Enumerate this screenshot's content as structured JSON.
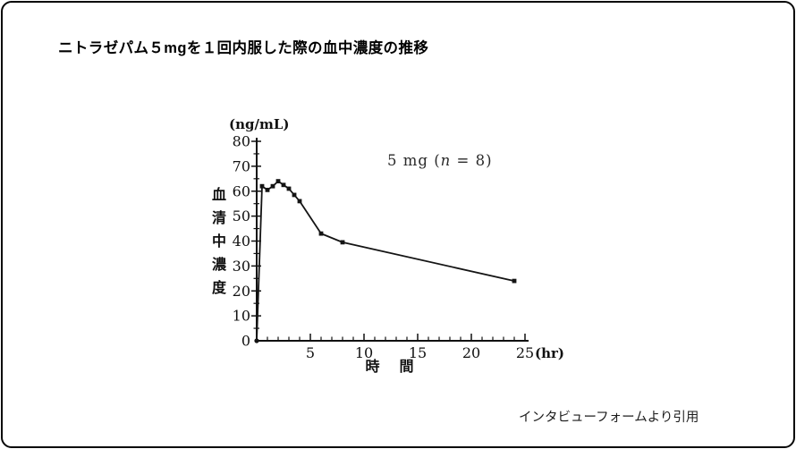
{
  "page": {
    "title": "ニトラゼパム５mgを１回内服した際の血中濃度の推移",
    "caption": "インタビューフォームより引用"
  },
  "chart_data": {
    "type": "line",
    "title": "ニトラゼパム５mgを１回内服した際の血中濃度の推移",
    "legend_text": "5 mg (n = 8)",
    "legend": {
      "prefix": "5 mg (",
      "n_symbol": "n",
      "suffix": " = 8)"
    },
    "legend_position": "upper-right-inside",
    "x": [
      0,
      0.5,
      1,
      1.5,
      2,
      2.5,
      3,
      3.5,
      4,
      6,
      8,
      24
    ],
    "y": [
      0,
      62,
      60.5,
      62,
      64,
      62.5,
      61,
      58.5,
      56,
      43,
      39.5,
      24
    ],
    "x_sample_unit": "hr",
    "y_sample_unit": "ng/mL",
    "xlabel": "時　間",
    "x_unit": "(hr)",
    "ylabel": "血清中濃度",
    "y_unit": "(ng/mL)",
    "xlim": [
      0,
      25.5
    ],
    "ylim": [
      0,
      80
    ],
    "x_major_ticks": [
      5,
      10,
      15,
      20,
      25
    ],
    "x_minor_tick_step": 1,
    "y_major_ticks": [
      0,
      10,
      20,
      30,
      40,
      50,
      60,
      70,
      80
    ],
    "y_minor_tick_step": 5,
    "grid": false,
    "marker": "square",
    "line_color": "#141414"
  }
}
